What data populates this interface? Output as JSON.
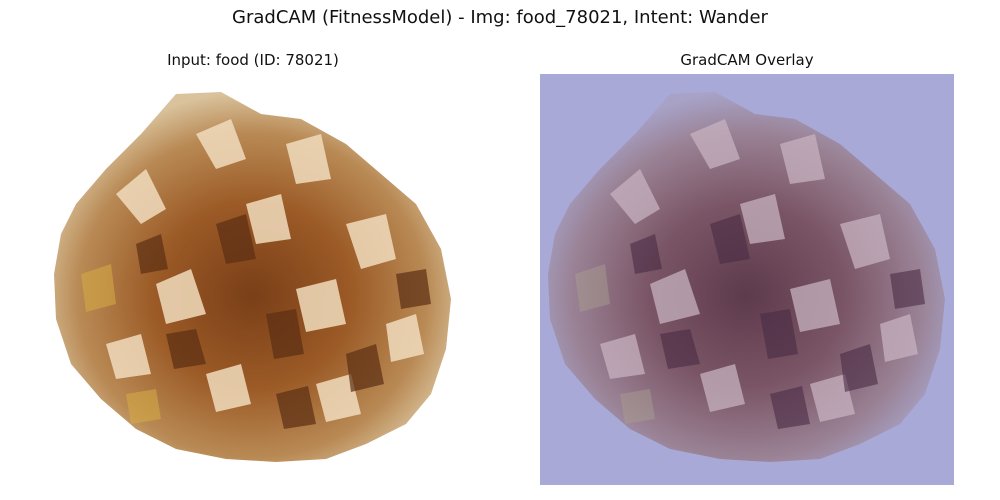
{
  "figure": {
    "title": "GradCAM (FitnessModel) - Img: food_78021, Intent: Wander"
  },
  "panels": [
    {
      "title": "Input: food (ID: 78021)",
      "image": "pineapple-top-photo",
      "background": "#ffffff"
    },
    {
      "title": "GradCAM Overlay",
      "image": "pineapple-top-gradcam-overlay",
      "overlay_color": "#a8a9d6"
    }
  ],
  "colors": {
    "fruit_dark": "#6b3a1c",
    "fruit_mid": "#a4612a",
    "fruit_light": "#e0b98a",
    "fruit_pale": "#f2dfc2",
    "overlay_tint": "#a8a9d6"
  }
}
